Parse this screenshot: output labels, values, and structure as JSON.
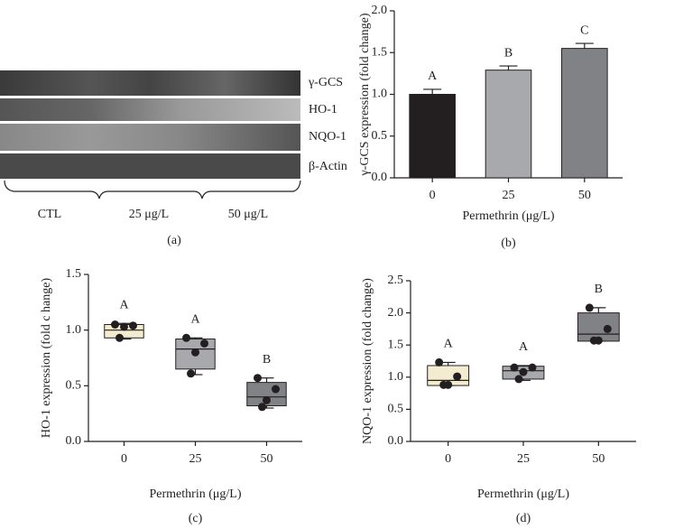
{
  "blot": {
    "rows": [
      "γ-GCS",
      "HO-1",
      "NQO-1",
      "β-Actin"
    ],
    "groups": [
      "CTL",
      "25 μg/L",
      "50 μg/L"
    ],
    "label": "(a)"
  },
  "chart_data": [
    {
      "type": "bar",
      "label": "(b)",
      "ylabel": "γ-GCS expression (fold change)",
      "xlabel": "Permethrin (μg/L)",
      "categories": [
        "0",
        "25",
        "50"
      ],
      "values": [
        1.0,
        1.29,
        1.55
      ],
      "errors": [
        0.06,
        0.05,
        0.06
      ],
      "colors": [
        "#231f20",
        "#a7a9ac",
        "#808285"
      ],
      "annotations": [
        "A",
        "B",
        "C"
      ],
      "ylim": [
        0,
        2
      ],
      "yticks": [
        {
          "value": 0,
          "label": "0.0"
        },
        {
          "value": 0.5,
          "label": "0.5"
        },
        {
          "value": 1,
          "label": "1.0"
        },
        {
          "value": 1.5,
          "label": "1.5"
        },
        {
          "value": 2,
          "label": "2.0"
        }
      ]
    },
    {
      "type": "box",
      "label": "(c)",
      "ylabel": "HO-1 expression (fold c hange)",
      "xlabel": "Permethrin (μg/L)",
      "categories": [
        "0",
        "25",
        "50"
      ],
      "boxes": [
        {
          "min": 0.92,
          "q1": 0.93,
          "median": 1.0,
          "q3": 1.05,
          "max": 1.06,
          "points": [
            1.05,
            1.04,
            1.03,
            0.93
          ]
        },
        {
          "min": 0.6,
          "q1": 0.65,
          "median": 0.83,
          "q3": 0.92,
          "max": 0.93,
          "points": [
            0.93,
            0.88,
            0.8,
            0.61
          ]
        },
        {
          "min": 0.3,
          "q1": 0.32,
          "median": 0.4,
          "q3": 0.53,
          "max": 0.57,
          "points": [
            0.57,
            0.47,
            0.37,
            0.31
          ]
        }
      ],
      "colors": [
        "#f3ecd0",
        "#a7a9ac",
        "#808285"
      ],
      "annotations": [
        "A",
        "A",
        "B"
      ],
      "ylim": [
        0,
        1.5
      ],
      "yticks": [
        {
          "value": 0,
          "label": "0.0"
        },
        {
          "value": 0.5,
          "label": "0.5"
        },
        {
          "value": 1,
          "label": "1.0"
        },
        {
          "value": 1.5,
          "label": "1.5"
        }
      ]
    },
    {
      "type": "box",
      "label": "(d)",
      "ylabel": "NQO-1 expression (fold change)",
      "xlabel": "Permethrin (μg/L)",
      "categories": [
        "0",
        "25",
        "50"
      ],
      "boxes": [
        {
          "min": 0.87,
          "q1": 0.87,
          "median": 0.95,
          "q3": 1.18,
          "max": 1.23,
          "points": [
            1.23,
            1.01,
            0.88,
            0.88
          ]
        },
        {
          "min": 0.95,
          "q1": 0.97,
          "median": 1.1,
          "q3": 1.17,
          "max": 1.18,
          "points": [
            1.15,
            1.15,
            1.08,
            0.97
          ]
        },
        {
          "min": 1.56,
          "q1": 1.56,
          "median": 1.67,
          "q3": 2.0,
          "max": 2.08,
          "points": [
            2.08,
            1.75,
            1.57,
            1.57
          ]
        }
      ],
      "colors": [
        "#f3ecd0",
        "#a7a9ac",
        "#808285"
      ],
      "annotations": [
        "A",
        "A",
        "B"
      ],
      "ylim": [
        0,
        2.5
      ],
      "yticks": [
        {
          "value": 0,
          "label": "0.0"
        },
        {
          "value": 0.5,
          "label": "0.5"
        },
        {
          "value": 1,
          "label": "1.0"
        },
        {
          "value": 1.5,
          "label": "1.5"
        },
        {
          "value": 2,
          "label": "2.0"
        },
        {
          "value": 2.5,
          "label": "2.5"
        }
      ]
    }
  ]
}
